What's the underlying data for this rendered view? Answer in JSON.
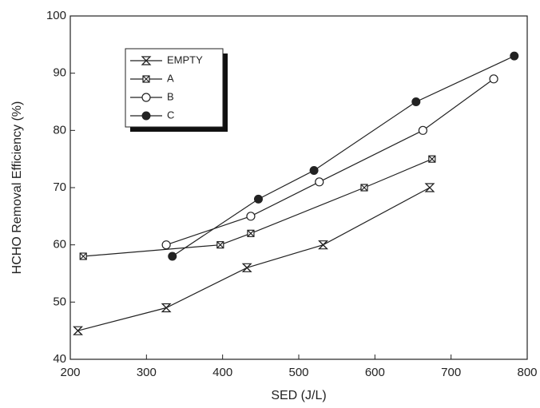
{
  "chart_data": {
    "type": "line",
    "x_label": "SED (J/L)",
    "y_label": "HCHO Removal Efficiency (%)",
    "xlim": [
      200,
      800
    ],
    "xticks": [
      200,
      300,
      400,
      500,
      600,
      700,
      800
    ],
    "ylim": [
      40,
      100
    ],
    "yticks": [
      40,
      50,
      60,
      70,
      80,
      90,
      100
    ],
    "series": [
      {
        "name": "EMPTY",
        "color": "#222222",
        "marker": "hourglass",
        "x": [
          210,
          326,
          432,
          532,
          672
        ],
        "values": [
          45,
          49,
          56,
          60,
          70
        ]
      },
      {
        "name": "A",
        "color": "#222222",
        "marker": "crossed-square",
        "x": [
          217,
          397,
          437,
          586,
          675
        ],
        "values": [
          58,
          60,
          62,
          70,
          75
        ]
      },
      {
        "name": "B",
        "color": "#222222",
        "marker": "open-circle",
        "x": [
          326,
          437,
          527,
          663,
          756
        ],
        "values": [
          60,
          65,
          71,
          80,
          89
        ]
      },
      {
        "name": "C",
        "color": "#222222",
        "marker": "filled-circle",
        "x": [
          334,
          447,
          520,
          654,
          783
        ],
        "values": [
          58,
          68,
          73,
          85,
          93
        ]
      }
    ]
  }
}
